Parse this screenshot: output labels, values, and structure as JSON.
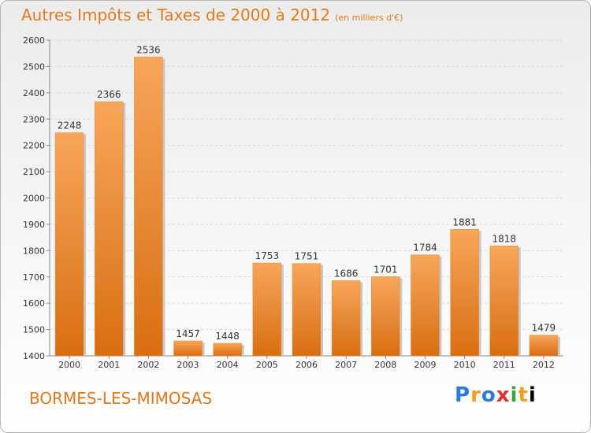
{
  "header": {
    "title": "Autres Impôts et Taxes de 2000 à 2012",
    "subtitle": "(en milliers d'€)"
  },
  "footer": {
    "commune": "BORMES-LES-MIMOSAS",
    "brand": "Proxiti"
  },
  "colors": {
    "title": "#e07a1f",
    "bar_top": "#f7a65a",
    "bar_bottom": "#d96e12"
  },
  "chart_data": {
    "type": "bar",
    "title": "Autres Impôts et Taxes de 2000 à 2012",
    "subtitle": "(en milliers d'€)",
    "categories": [
      "2000",
      "2001",
      "2002",
      "2003",
      "2004",
      "2005",
      "2006",
      "2007",
      "2008",
      "2009",
      "2010",
      "2011",
      "2012"
    ],
    "values": [
      2248,
      2366,
      2536,
      1457,
      1448,
      1753,
      1751,
      1686,
      1701,
      1784,
      1881,
      1818,
      1479
    ],
    "yticks": [
      1400,
      1500,
      1600,
      1700,
      1800,
      1900,
      2000,
      2100,
      2200,
      2300,
      2400,
      2500,
      2600
    ],
    "ylim": [
      1400,
      2600
    ],
    "grid": true,
    "xlabel": "",
    "ylabel": ""
  }
}
